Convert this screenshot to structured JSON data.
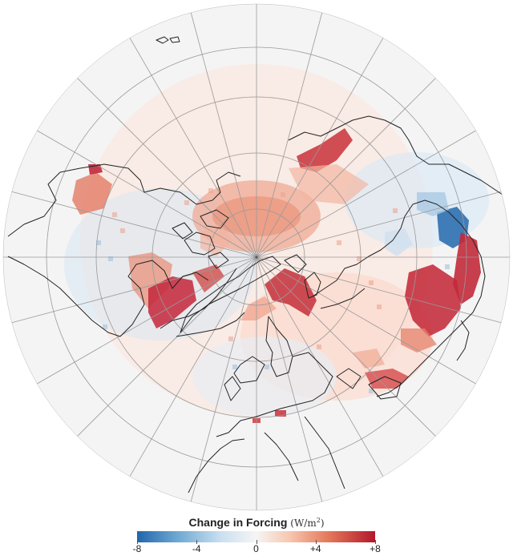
{
  "legend": {
    "title": "Change in Forcing",
    "unit_text": "(W/m",
    "unit_sup": "2",
    "unit_close": ")",
    "ticks": [
      {
        "label": "-8",
        "value": -8
      },
      {
        "label": "-4",
        "value": -4
      },
      {
        "label": "0",
        "value": 0
      },
      {
        "label": "+4",
        "value": 4
      },
      {
        "label": "+8",
        "value": 8
      }
    ],
    "range": [
      -8,
      8
    ]
  },
  "colors": {
    "negative": "#2166ac",
    "neutral": "#f5f5f5",
    "positive": "#b2182b",
    "coastline": "#222222",
    "graticule": "#9a9a9a",
    "background": "#f4f4f4"
  },
  "map": {
    "projection": "polar stereographic (north pole centered)",
    "meridians_count": 24,
    "parallel_circles": 4
  }
}
